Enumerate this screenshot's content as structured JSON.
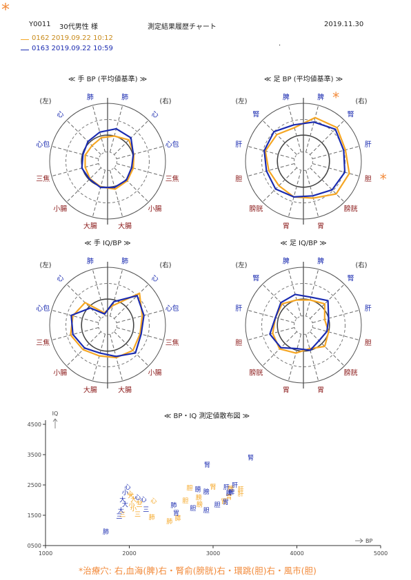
{
  "header": {
    "corner_mark": "*",
    "patient_id": "Y0011",
    "patient_label": "30代男性 様",
    "report_title": "測定結果履歴チャート",
    "report_date": "2019.11.30",
    "dot": "."
  },
  "legend": [
    {
      "label": "0162  2019.09.22 10:12",
      "color": "#f5a623"
    },
    {
      "label": "0163  2019.09.22 10:59",
      "color": "#1a2bb0"
    }
  ],
  "colors": {
    "series1": "#f5a623",
    "series2": "#1a2bb0",
    "label_blue": "#1a2bb0",
    "label_red": "#8b1a1a",
    "star": "#f28a3a"
  },
  "chart_data": [
    {
      "type": "radar",
      "title": "≪ 手 BP (平均値基準) ≫",
      "side_left": "(左)",
      "side_right": "(右)",
      "axes": [
        "肺",
        "心",
        "心包",
        "三焦",
        "小腸",
        "大腸",
        "大腸",
        "小腸",
        "三焦",
        "心包",
        "心",
        "肺"
      ],
      "axis_colors": [
        "blue",
        "blue",
        "blue",
        "red",
        "red",
        "red",
        "red",
        "red",
        "red",
        "blue",
        "blue",
        "blue"
      ],
      "stars": [
        false,
        false,
        false,
        false,
        false,
        false,
        false,
        false,
        false,
        false,
        false,
        false
      ],
      "series": [
        {
          "name": "0162",
          "values": [
            0.42,
            0.38,
            0.4,
            0.4,
            0.43,
            0.46,
            0.5,
            0.48,
            0.46,
            0.47,
            0.52,
            0.45
          ]
        },
        {
          "name": "0163",
          "values": [
            0.52,
            0.48,
            0.44,
            0.46,
            0.44,
            0.47,
            0.47,
            0.46,
            0.43,
            0.46,
            0.57,
            0.58
          ]
        }
      ]
    },
    {
      "type": "radar",
      "title": "≪ 足 BP (平均値基準) ≫",
      "side_left": "(左)",
      "side_right": "(右)",
      "axes": [
        "脾",
        "腎",
        "肝",
        "胆",
        "膀胱",
        "胃",
        "胃",
        "膀胱",
        "胆",
        "肝",
        "腎",
        "脾"
      ],
      "axis_colors": [
        "blue",
        "blue",
        "blue",
        "red",
        "red",
        "red",
        "red",
        "red",
        "red",
        "blue",
        "blue",
        "blue"
      ],
      "stars": [
        false,
        false,
        false,
        false,
        false,
        false,
        false,
        false,
        true,
        false,
        false,
        true
      ],
      "star_right_bladder": true,
      "series": [
        {
          "name": "0162",
          "values": [
            0.6,
            0.65,
            0.68,
            0.62,
            0.6,
            0.64,
            0.66,
            0.8,
            0.82,
            0.75,
            0.82,
            0.78
          ]
        },
        {
          "name": "0163",
          "values": [
            0.65,
            0.72,
            0.7,
            0.66,
            0.68,
            0.64,
            0.62,
            0.7,
            0.74,
            0.72,
            0.78,
            0.7
          ]
        }
      ]
    },
    {
      "type": "radar",
      "title": "≪ 手 IQ/BP ≫",
      "side_left": "(左)",
      "side_right": "(右)",
      "axes": [
        "肺",
        "心",
        "心包",
        "三焦",
        "小腸",
        "大腸",
        "大腸",
        "小腸",
        "三焦",
        "心包",
        "心",
        "肺"
      ],
      "axis_colors": [
        "blue",
        "blue",
        "blue",
        "red",
        "red",
        "red",
        "red",
        "red",
        "red",
        "blue",
        "blue",
        "blue"
      ],
      "stars": [
        false,
        false,
        false,
        false,
        false,
        false,
        false,
        false,
        false,
        false,
        false,
        false
      ],
      "series": [
        {
          "name": "0162",
          "values": [
            0.22,
            0.55,
            0.62,
            0.66,
            0.6,
            0.55,
            0.58,
            0.62,
            0.58,
            0.62,
            0.78,
            0.35
          ]
        },
        {
          "name": "0163",
          "values": [
            0.2,
            0.42,
            0.65,
            0.62,
            0.56,
            0.5,
            0.56,
            0.68,
            0.6,
            0.65,
            0.72,
            0.42
          ]
        }
      ]
    },
    {
      "type": "radar",
      "title": "≪ 足 IQ/BP ≫",
      "side_left": "(左)",
      "side_right": "(右)",
      "axes": [
        "脾",
        "腎",
        "肝",
        "胆",
        "膀胱",
        "胃",
        "胃",
        "膀胱",
        "胆",
        "肝",
        "腎",
        "脾"
      ],
      "axis_colors": [
        "blue",
        "blue",
        "blue",
        "red",
        "red",
        "red",
        "red",
        "red",
        "red",
        "blue",
        "blue",
        "blue"
      ],
      "stars": [
        false,
        false,
        false,
        false,
        false,
        false,
        false,
        false,
        false,
        false,
        false,
        false
      ],
      "series": [
        {
          "name": "0162",
          "values": [
            0.45,
            0.52,
            0.5,
            0.55,
            0.58,
            0.5,
            0.42,
            0.52,
            0.45,
            0.38,
            0.52,
            0.45
          ]
        },
        {
          "name": "0163",
          "values": [
            0.55,
            0.55,
            0.5,
            0.6,
            0.55,
            0.42,
            0.45,
            0.38,
            0.42,
            0.45,
            0.6,
            0.5
          ]
        }
      ]
    },
    {
      "type": "scatter",
      "title": "≪ BP・IQ 測定値散布図 ≫",
      "ylabel": "IQ",
      "xlabel": "BP",
      "xlim": [
        1000,
        5000
      ],
      "ylim": [
        500,
        4500
      ],
      "xticks": [
        "1000",
        "2000",
        "3000",
        "4000",
        "5000"
      ],
      "yticks": [
        "0500",
        "1500",
        "2500",
        "3500",
        "4500"
      ],
      "series": [
        {
          "name": "0162",
          "color": "#f5a623",
          "points": [
            {
              "x": 3000,
              "y": 2450,
              "label": "腎"
            },
            {
              "x": 3330,
              "y": 2380,
              "label": "肝"
            },
            {
              "x": 3330,
              "y": 2230,
              "label": "肝"
            },
            {
              "x": 3210,
              "y": 2400,
              "label": "脾"
            },
            {
              "x": 3190,
              "y": 2130,
              "label": "胃"
            },
            {
              "x": 3130,
              "y": 1980,
              "label": "胃"
            },
            {
              "x": 2720,
              "y": 2420,
              "label": "胆"
            },
            {
              "x": 2670,
              "y": 2000,
              "label": "胆"
            },
            {
              "x": 2830,
              "y": 2100,
              "label": "膀"
            },
            {
              "x": 2840,
              "y": 1870,
              "label": "膀"
            },
            {
              "x": 2580,
              "y": 1420,
              "label": "膵"
            },
            {
              "x": 2480,
              "y": 1320,
              "label": "肺"
            },
            {
              "x": 2270,
              "y": 1450,
              "label": "肺"
            },
            {
              "x": 2290,
              "y": 2000,
              "label": "心"
            },
            {
              "x": 2120,
              "y": 1970,
              "label": "心"
            },
            {
              "x": 2020,
              "y": 2170,
              "label": "大"
            },
            {
              "x": 2050,
              "y": 2050,
              "label": "大"
            },
            {
              "x": 2030,
              "y": 1860,
              "label": "小"
            },
            {
              "x": 2050,
              "y": 1740,
              "label": "小"
            },
            {
              "x": 2120,
              "y": 1880,
              "label": "三"
            },
            {
              "x": 2010,
              "y": 2240,
              "label": "心"
            },
            {
              "x": 1920,
              "y": 1540,
              "label": "三"
            },
            {
              "x": 2100,
              "y": 1560,
              "label": "三"
            }
          ]
        },
        {
          "name": "0163",
          "color": "#1a2bb0",
          "points": [
            {
              "x": 3450,
              "y": 3420,
              "label": "腎"
            },
            {
              "x": 2930,
              "y": 3180,
              "label": "腎"
            },
            {
              "x": 3260,
              "y": 2510,
              "label": "肝"
            },
            {
              "x": 3160,
              "y": 2440,
              "label": "肝"
            },
            {
              "x": 3190,
              "y": 2250,
              "label": "脾"
            },
            {
              "x": 3220,
              "y": 2280,
              "label": "脾"
            },
            {
              "x": 3150,
              "y": 1960,
              "label": "胃"
            },
            {
              "x": 3050,
              "y": 1860,
              "label": "胆"
            },
            {
              "x": 2760,
              "y": 1750,
              "label": "胆"
            },
            {
              "x": 2820,
              "y": 2380,
              "label": "膀"
            },
            {
              "x": 2920,
              "y": 2300,
              "label": "膀"
            },
            {
              "x": 2920,
              "y": 1680,
              "label": "胆"
            },
            {
              "x": 2530,
              "y": 1850,
              "label": "肺"
            },
            {
              "x": 2560,
              "y": 1590,
              "label": "胃"
            },
            {
              "x": 1720,
              "y": 980,
              "label": "肺"
            },
            {
              "x": 2100,
              "y": 2110,
              "label": "心"
            },
            {
              "x": 2170,
              "y": 2050,
              "label": "心"
            },
            {
              "x": 1980,
              "y": 2460,
              "label": "心"
            },
            {
              "x": 1950,
              "y": 2270,
              "label": "小"
            },
            {
              "x": 1920,
              "y": 2030,
              "label": "大"
            },
            {
              "x": 1950,
              "y": 1880,
              "label": "大"
            },
            {
              "x": 2200,
              "y": 1720,
              "label": "三"
            },
            {
              "x": 1900,
              "y": 1680,
              "label": "大"
            },
            {
              "x": 1880,
              "y": 1490,
              "label": "三"
            }
          ]
        }
      ]
    }
  ],
  "footer": {
    "treatment": "*治療穴: 右,血海(脾)右・腎俞(膀胱)右・環跳(胆)右・風市(胆)"
  }
}
